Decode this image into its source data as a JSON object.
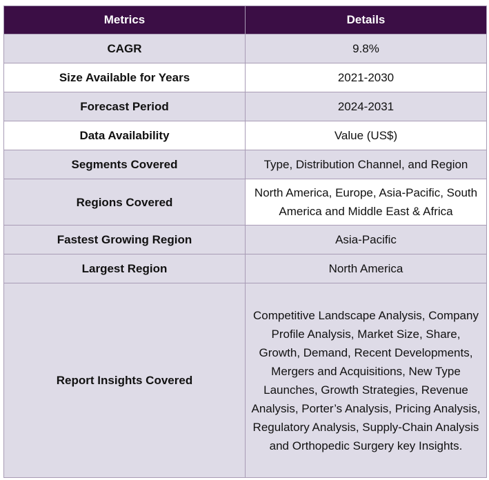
{
  "table": {
    "headers": [
      "Metrics",
      "Details"
    ],
    "rows": [
      {
        "metric": "CAGR",
        "detail": "9.8%"
      },
      {
        "metric": "Size Available for Years",
        "detail": "2021-2030"
      },
      {
        "metric": "Forecast Period",
        "detail": "2024-2031"
      },
      {
        "metric": "Data Availability",
        "detail": "Value (US$)"
      },
      {
        "metric": "Segments Covered",
        "detail": "Type, Distribution Channel, and Region"
      },
      {
        "metric": "Regions Covered",
        "detail": "North America, Europe, Asia-Pacific, South America and Middle East & Africa"
      },
      {
        "metric": "Fastest Growing Region",
        "detail": "Asia-Pacific"
      },
      {
        "metric": "Largest Region",
        "detail": "North America"
      },
      {
        "metric": "Report Insights Covered",
        "detail": "Competitive Landscape Analysis, Company Profile Analysis, Market Size, Share, Growth, Demand, Recent Developments, Mergers and Acquisitions, New Type Launches, Growth Strategies, Revenue Analysis, Porter’s Analysis, Pricing Analysis, Regulatory Analysis, Supply-Chain Analysis and Orthopedic Surgery key Insights."
      }
    ]
  },
  "colors": {
    "header_bg": "#3b0e45",
    "row_shade": "#dedbe7",
    "border": "#a89bb5"
  }
}
